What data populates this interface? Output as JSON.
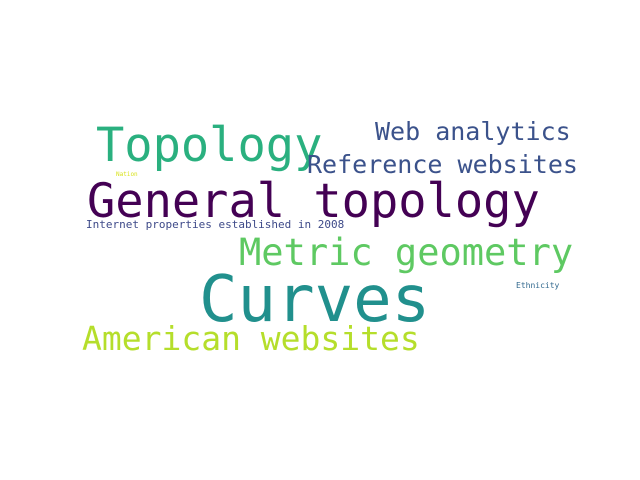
{
  "words": {
    "curves": {
      "text": "Curves",
      "color": "#21908d"
    },
    "general_topology": {
      "text": "General topology",
      "color": "#440154"
    },
    "topology": {
      "text": "Topology",
      "color": "#2ab07f"
    },
    "metric_geometry": {
      "text": "Metric geometry",
      "color": "#5ec962"
    },
    "american_websites": {
      "text": "American websites",
      "color": "#b5de2b"
    },
    "web_analytics": {
      "text": "Web analytics",
      "color": "#3b528b"
    },
    "reference_websites": {
      "text": "Reference websites",
      "color": "#3b528b"
    },
    "internet_properties": {
      "text": "Internet properties established in 2008",
      "color": "#3e4a89"
    },
    "ethnicity": {
      "text": "Ethnicity",
      "color": "#31688e"
    },
    "nation": {
      "text": "Nation",
      "color": "#d8e219"
    }
  }
}
